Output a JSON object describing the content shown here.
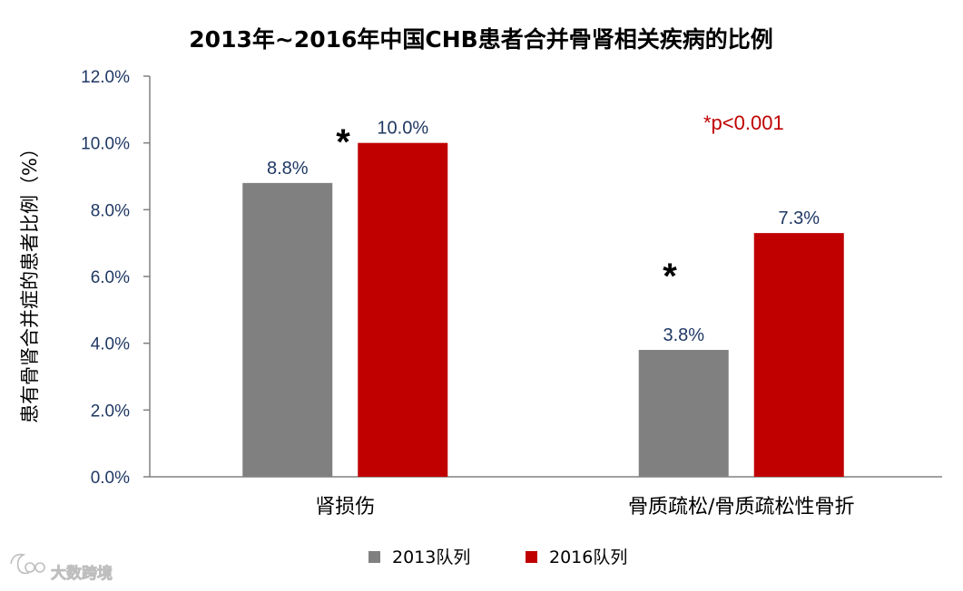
{
  "chart_data": {
    "type": "bar",
    "title": "2013年~2016年中国CHB患者合并骨肾相关疾病的比例",
    "ylabel": "患有骨肾合并症的患者比例（%）",
    "xlabel": "",
    "categories": [
      "肾损伤",
      "骨质疏松/骨质疏松性骨折"
    ],
    "series": [
      {
        "name": "2013队列",
        "values": [
          8.8,
          3.8
        ],
        "labels": [
          "8.8%",
          "3.8%"
        ],
        "color": "#808080"
      },
      {
        "name": "2016队列",
        "values": [
          10.0,
          7.3
        ],
        "labels": [
          "10.0%",
          "7.3%"
        ],
        "color": "#c00000"
      }
    ],
    "ylim": [
      0,
      12
    ],
    "yticks": [
      0,
      2,
      4,
      6,
      8,
      10,
      12
    ],
    "ytick_labels": [
      "0.0%",
      "2.0%",
      "4.0%",
      "6.0%",
      "8.0%",
      "10.0%",
      "12.0%"
    ],
    "significance_markers": [
      "*",
      "*"
    ],
    "annotation": "*p<0.001",
    "annotation_color": "#c00000",
    "legend_position": "bottom",
    "grid": false,
    "watermark": "大数跨境"
  }
}
